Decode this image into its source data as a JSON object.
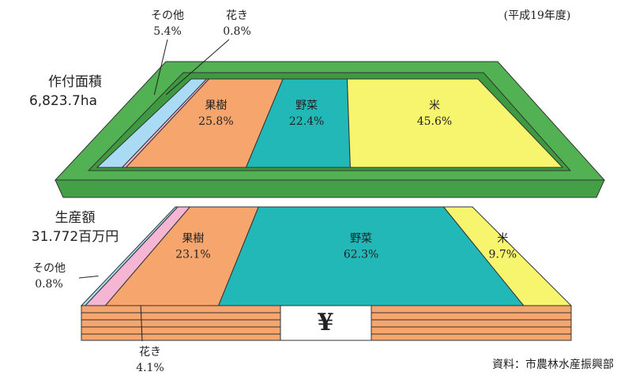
{
  "note": "(平成19年度)",
  "source": "資料：市農林水産振興部",
  "chart_data": [
    {
      "type": "stacked-plane",
      "title": "作付面積",
      "subtitle": "6,823.7ha",
      "categories": [
        "その他",
        "花き",
        "果樹",
        "野菜",
        "米"
      ],
      "values": [
        5.4,
        0.8,
        25.8,
        22.4,
        45.6
      ],
      "value_labels": [
        "5.4%",
        "0.8%",
        "25.8%",
        "22.4%",
        "45.6%"
      ],
      "colors": [
        "#a9dcf4",
        "#f4b6d2",
        "#f6a56d",
        "#23b8b8",
        "#f7f46e"
      ]
    },
    {
      "type": "stacked-plane",
      "title": "生産額",
      "subtitle": "31.772百万円",
      "symbol": "¥",
      "categories": [
        "その他",
        "花き",
        "果樹",
        "野菜",
        "米"
      ],
      "values": [
        0.8,
        4.1,
        23.1,
        62.3,
        9.7
      ],
      "value_labels": [
        "0.8%",
        "4.1%",
        "23.1%",
        "62.3%",
        "9.7%"
      ],
      "colors": [
        "#a9dcf4",
        "#f4b6d2",
        "#f6a56d",
        "#23b8b8",
        "#f7f46e"
      ]
    }
  ]
}
